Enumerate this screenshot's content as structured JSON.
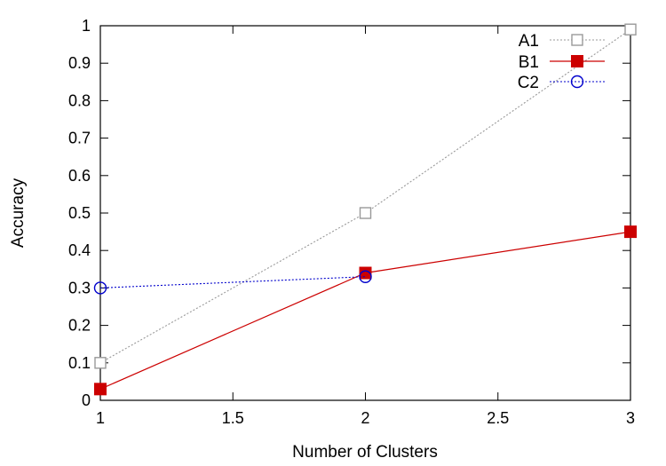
{
  "chart_data": {
    "type": "line",
    "title": "",
    "xlabel": "Number of Clusters",
    "ylabel": "Accuracy",
    "xlim": [
      1,
      3
    ],
    "ylim": [
      0,
      1
    ],
    "xticks": [
      1,
      1.5,
      2,
      2.5,
      3
    ],
    "xtick_labels": [
      "1",
      "1.5",
      "2",
      "2.5",
      "3"
    ],
    "yticks": [
      0,
      0.1,
      0.2,
      0.3,
      0.4,
      0.5,
      0.6,
      0.7,
      0.8,
      0.9,
      1
    ],
    "ytick_labels": [
      "0",
      "0.1",
      "0.2",
      "0.3",
      "0.4",
      "0.5",
      "0.6",
      "0.7",
      "0.8",
      "0.9",
      "1"
    ],
    "grid": false,
    "legend_position": "top-right",
    "series": [
      {
        "name": "A1",
        "x": [
          1,
          2,
          3
        ],
        "values": [
          0.1,
          0.5,
          0.99
        ],
        "color": "#999999",
        "line_style": "dotted",
        "marker": "open-square"
      },
      {
        "name": "B1",
        "x": [
          1,
          2,
          3
        ],
        "values": [
          0.03,
          0.34,
          0.45
        ],
        "color": "#cc0000",
        "line_style": "solid",
        "marker": "filled-square"
      },
      {
        "name": "C2",
        "x": [
          1,
          2
        ],
        "values": [
          0.3,
          0.33
        ],
        "color": "#0000cc",
        "line_style": "dotted",
        "marker": "open-circle"
      }
    ]
  }
}
